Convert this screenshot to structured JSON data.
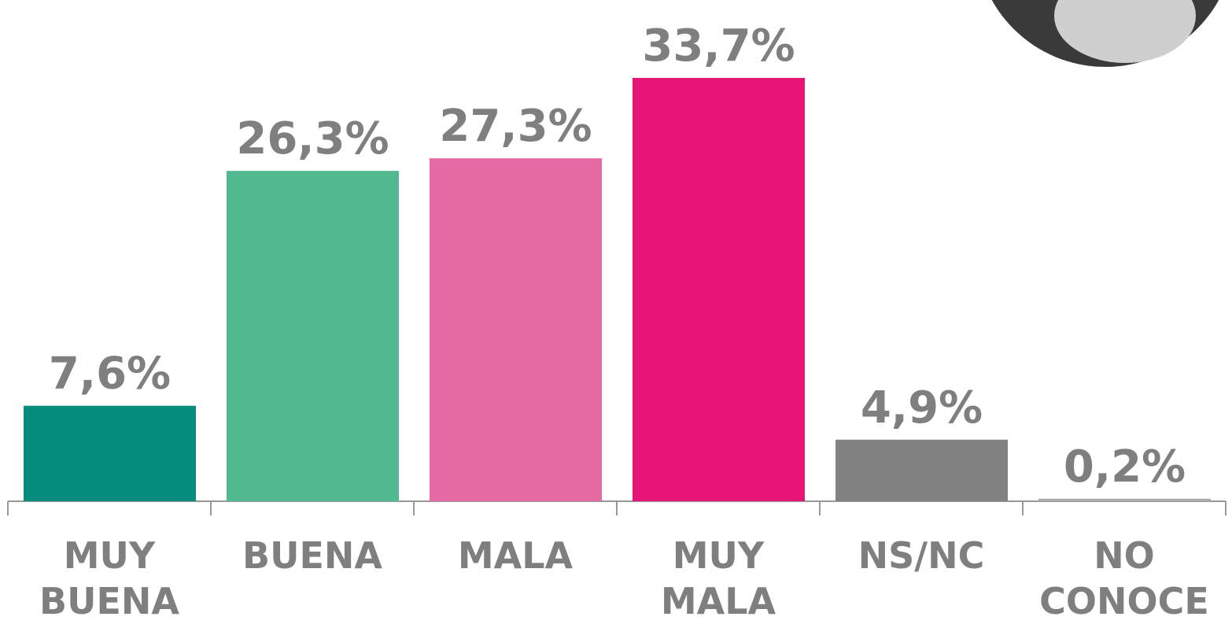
{
  "chart_data": {
    "type": "bar",
    "categories": [
      "MUY BUENA",
      "BUENA",
      "MALA",
      "MUY MALA",
      "NS/NC",
      "NO CONOCE"
    ],
    "values": [
      7.6,
      26.3,
      27.3,
      33.7,
      4.9,
      0.2
    ],
    "value_labels": [
      "7,6%",
      "26,3%",
      "27,3%",
      "33,7%",
      "4,9%",
      "0,2%"
    ],
    "colors": [
      "#068c7c",
      "#52b88f",
      "#e56aa4",
      "#e61576",
      "#828282",
      "#aaaaaa"
    ]
  }
}
